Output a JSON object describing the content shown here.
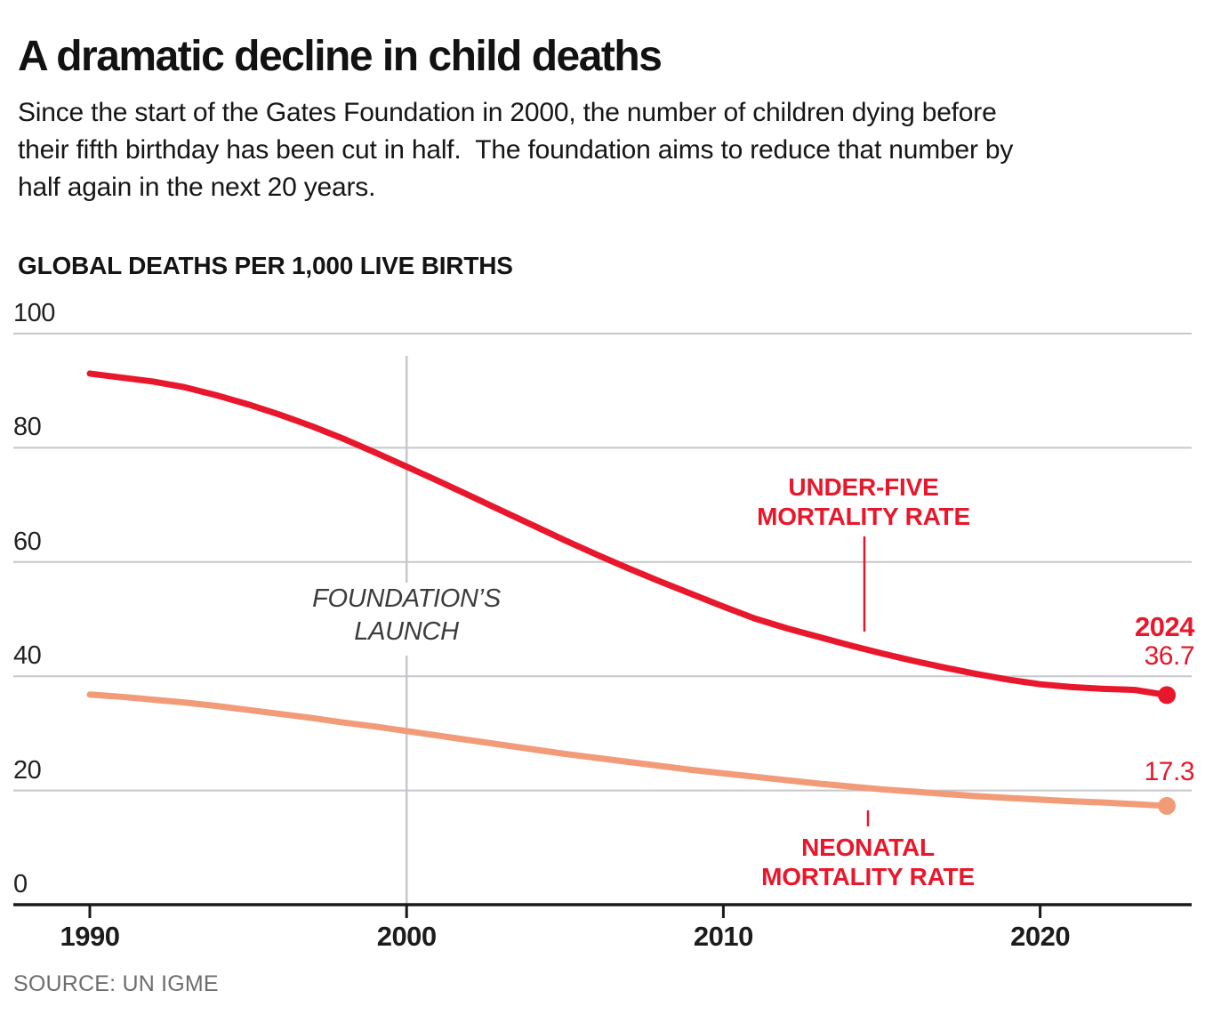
{
  "header": {
    "title": "A dramatic decline in child deaths",
    "subtitle": "Since the start of the Gates Foundation in 2000, the number of children dying before\ntheir fifth birthday has been cut in half.  The foundation aims to reduce that number by\nhalf again in the next 20 years."
  },
  "chart": {
    "axis_title": "GLOBAL DEATHS PER 1,000 LIVE BIRTHS",
    "launch_label": "FOUNDATION’S\nLAUNCH",
    "under_five_label": "UNDER-FIVE\nMORTALITY RATE",
    "neonatal_label": "NEONATAL\nMORTALITY RATE",
    "end_year_label": "2024",
    "under_five_end_value": "36.7",
    "neonatal_end_value": "17.3"
  },
  "source_note": "SOURCE: UN IGME",
  "colors": {
    "under_five": "#e9172b",
    "neonatal": "#f29b78",
    "annotation_red": "#e9172b",
    "grid": "#c5c7ca",
    "axis": "#1a1a1a"
  },
  "chart_data": {
    "type": "line",
    "title": "A dramatic decline in child deaths",
    "xlabel": "",
    "ylabel": "GLOBAL DEATHS PER 1,000 LIVE BIRTHS",
    "x": [
      1990,
      1991,
      1992,
      1993,
      1994,
      1995,
      1996,
      1997,
      1998,
      1999,
      2000,
      2001,
      2002,
      2003,
      2004,
      2005,
      2006,
      2007,
      2008,
      2009,
      2010,
      2011,
      2012,
      2013,
      2014,
      2015,
      2016,
      2017,
      2018,
      2019,
      2020,
      2021,
      2022,
      2023,
      2024
    ],
    "series": [
      {
        "name": "UNDER-FIVE MORTALITY RATE",
        "color": "#e9172b",
        "values": [
          93,
          92.3,
          91.6,
          90.6,
          89.2,
          87.6,
          85.8,
          83.8,
          81.6,
          79.2,
          76.7,
          74.2,
          71.6,
          69,
          66.4,
          63.8,
          61.3,
          58.9,
          56.6,
          54.4,
          52.2,
          50.1,
          48.4,
          46.9,
          45.4,
          44,
          42.7,
          41.5,
          40.4,
          39.4,
          38.6,
          38.1,
          37.8,
          37.6,
          36.7
        ]
      },
      {
        "name": "NEONATAL MORTALITY RATE",
        "color": "#f29b78",
        "values": [
          36.8,
          36.4,
          35.9,
          35.4,
          34.8,
          34.1,
          33.4,
          32.7,
          31.9,
          31.2,
          30.4,
          29.6,
          28.8,
          28,
          27.2,
          26.4,
          25.7,
          25,
          24.3,
          23.6,
          23,
          22.4,
          21.8,
          21.2,
          20.7,
          20.2,
          19.8,
          19.4,
          19,
          18.7,
          18.4,
          18.1,
          17.9,
          17.6,
          17.3
        ]
      }
    ],
    "xticks": [
      1990,
      2000,
      2010,
      2020
    ],
    "yticks": [
      0,
      20,
      40,
      60,
      80,
      100
    ],
    "ylim": [
      0,
      100
    ],
    "grid": "horizontal-only",
    "legend_position": "inline-annotations",
    "annotations": {
      "foundation_launch_year": 2000,
      "end_label": {
        "year": "2024",
        "under_five": 36.7,
        "neonatal": 17.3
      }
    }
  }
}
